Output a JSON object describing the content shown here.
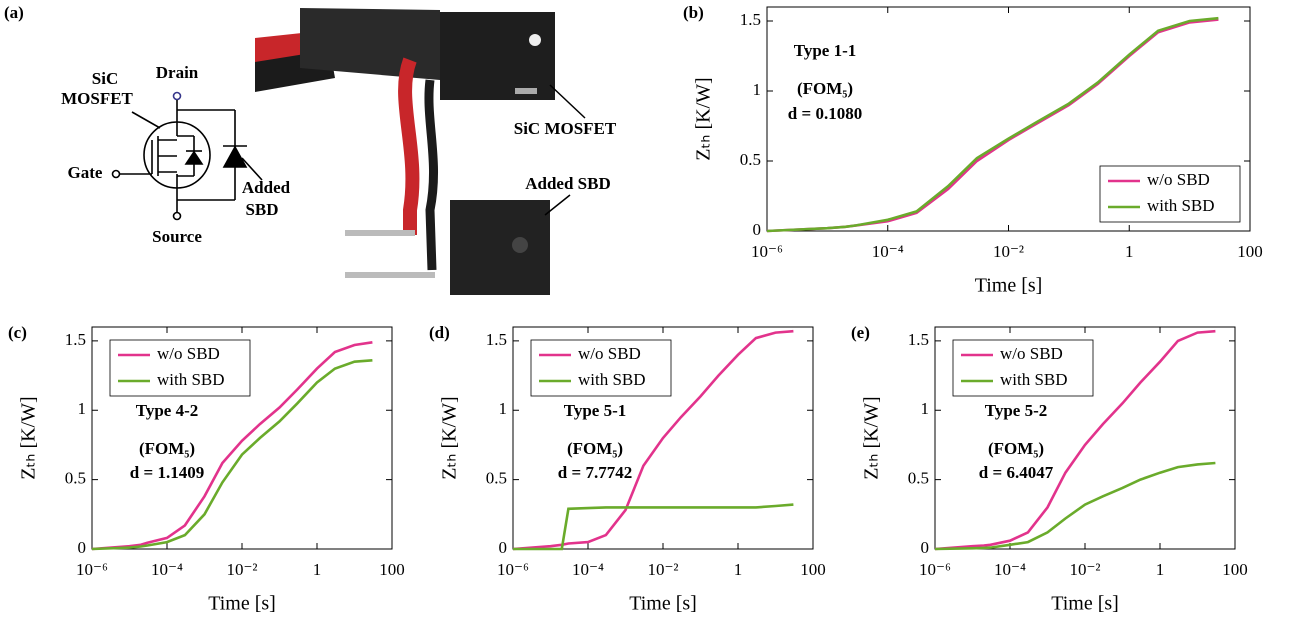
{
  "figure_a": {
    "panel_label": "(a)",
    "mosfet_label": [
      "SiC",
      "MOSFET"
    ],
    "drain": "Drain",
    "gate": "Gate",
    "source": "Source",
    "sbd_label": [
      "Added",
      "SBD"
    ],
    "photo_mosfet": "SiC MOSFET",
    "photo_sbd": "Added SBD"
  },
  "chart_data": [
    {
      "type": "line",
      "panel_label": "(b)",
      "xlabel": "Time [s]",
      "ylabel": "Zₜₕ [K/W]",
      "xscale": "log",
      "annotations": [
        "Type 1-1",
        "(FOM₅)",
        "d = 0.1080"
      ],
      "legend": "lower right",
      "x": [
        1e-06,
        1e-05,
        2e-05,
        3e-05,
        0.0001,
        0.0003,
        0.001,
        0.003,
        0.01,
        0.03,
        0.1,
        0.3,
        1,
        3,
        10,
        30
      ],
      "series": [
        {
          "name": "w/o SBD",
          "color": "#e2338c",
          "values": [
            0,
            0.02,
            0.03,
            0.04,
            0.07,
            0.13,
            0.3,
            0.5,
            0.65,
            0.77,
            0.9,
            1.05,
            1.25,
            1.42,
            1.49,
            1.51
          ]
        },
        {
          "name": "with SBD",
          "color": "#6aab2b",
          "values": [
            0,
            0.02,
            0.03,
            0.04,
            0.08,
            0.14,
            0.32,
            0.52,
            0.66,
            0.78,
            0.91,
            1.06,
            1.26,
            1.43,
            1.5,
            1.52
          ]
        }
      ],
      "xlim": [
        1e-06,
        100
      ],
      "xticks": [
        {
          "value": 1e-06,
          "label": "10⁻⁶"
        },
        {
          "value": 0.0001,
          "label": "10⁻⁴"
        },
        {
          "value": 0.01,
          "label": "10⁻²"
        },
        1,
        100
      ],
      "ylim": [
        0,
        1.6
      ],
      "yticks": [
        0,
        0.5,
        1,
        1.5
      ]
    },
    {
      "type": "line",
      "panel_label": "(c)",
      "xlabel": "Time [s]",
      "ylabel": "Zₜₕ [K/W]",
      "xscale": "log",
      "annotations": [
        "Type 4-2",
        "(FOM₅)",
        "d = 1.1409"
      ],
      "legend": "upper left",
      "x": [
        1e-06,
        1e-05,
        2e-05,
        3e-05,
        0.0001,
        0.0003,
        0.001,
        0.003,
        0.01,
        0.03,
        0.1,
        0.3,
        1,
        3,
        10,
        30
      ],
      "series": [
        {
          "name": "w/o SBD",
          "color": "#e2338c",
          "values": [
            0,
            0.02,
            0.03,
            0.045,
            0.08,
            0.17,
            0.38,
            0.62,
            0.78,
            0.9,
            1.02,
            1.15,
            1.3,
            1.42,
            1.47,
            1.49
          ]
        },
        {
          "name": "with SBD",
          "color": "#6aab2b",
          "values": [
            0,
            0.01,
            0.018,
            0.025,
            0.05,
            0.1,
            0.25,
            0.48,
            0.68,
            0.8,
            0.92,
            1.05,
            1.2,
            1.3,
            1.35,
            1.36
          ]
        }
      ],
      "xlim": [
        1e-06,
        100
      ],
      "xticks": [
        {
          "value": 1e-06,
          "label": "10⁻⁶"
        },
        {
          "value": 0.0001,
          "label": "10⁻⁴"
        },
        {
          "value": 0.01,
          "label": "10⁻²"
        },
        1,
        100
      ],
      "ylim": [
        0,
        1.6
      ],
      "yticks": [
        0,
        0.5,
        1,
        1.5
      ]
    },
    {
      "type": "line",
      "panel_label": "(d)",
      "xlabel": "Time [s]",
      "ylabel": "Zₜₕ [K/W]",
      "xscale": "log",
      "annotations": [
        "Type 5-1",
        "(FOM₅)",
        "d = 7.7742"
      ],
      "legend": "upper left",
      "x": [
        1e-06,
        1e-05,
        2e-05,
        3e-05,
        0.0001,
        0.0003,
        0.001,
        0.003,
        0.01,
        0.03,
        0.1,
        0.3,
        1,
        3,
        10,
        30
      ],
      "series": [
        {
          "name": "w/o SBD",
          "color": "#e2338c",
          "values": [
            0,
            0.02,
            0.03,
            0.04,
            0.05,
            0.1,
            0.28,
            0.6,
            0.8,
            0.95,
            1.1,
            1.25,
            1.4,
            1.52,
            1.56,
            1.57
          ]
        },
        {
          "name": "with SBD",
          "color": "#6aab2b",
          "values": [
            0,
            0,
            0,
            0.29,
            0.295,
            0.3,
            0.3,
            0.3,
            0.3,
            0.3,
            0.3,
            0.3,
            0.3,
            0.3,
            0.31,
            0.32
          ]
        }
      ],
      "xlim": [
        1e-06,
        100
      ],
      "xticks": [
        {
          "value": 1e-06,
          "label": "10⁻⁶"
        },
        {
          "value": 0.0001,
          "label": "10⁻⁴"
        },
        {
          "value": 0.01,
          "label": "10⁻²"
        },
        1,
        100
      ],
      "ylim": [
        0,
        1.6
      ],
      "yticks": [
        0,
        0.5,
        1,
        1.5
      ]
    },
    {
      "type": "line",
      "panel_label": "(e)",
      "xlabel": "Time [s]",
      "ylabel": "Zₜₕ [K/W]",
      "xscale": "log",
      "annotations": [
        "Type 5-2",
        "(FOM₅)",
        "d = 6.4047"
      ],
      "legend": "upper left",
      "x": [
        1e-06,
        1e-05,
        2e-05,
        3e-05,
        0.0001,
        0.0003,
        0.001,
        0.003,
        0.01,
        0.03,
        0.1,
        0.3,
        1,
        3,
        10,
        30
      ],
      "series": [
        {
          "name": "w/o SBD",
          "color": "#e2338c",
          "values": [
            0,
            0.02,
            0.025,
            0.03,
            0.06,
            0.12,
            0.3,
            0.55,
            0.75,
            0.9,
            1.05,
            1.2,
            1.35,
            1.5,
            1.56,
            1.57
          ]
        },
        {
          "name": "with SBD",
          "color": "#6aab2b",
          "values": [
            0,
            0.005,
            0.008,
            0.01,
            0.03,
            0.05,
            0.12,
            0.22,
            0.32,
            0.38,
            0.44,
            0.5,
            0.55,
            0.59,
            0.61,
            0.62
          ]
        }
      ],
      "xlim": [
        1e-06,
        100
      ],
      "xticks": [
        {
          "value": 1e-06,
          "label": "10⁻⁶"
        },
        {
          "value": 0.0001,
          "label": "10⁻⁴"
        },
        {
          "value": 0.01,
          "label": "10⁻²"
        },
        1,
        100
      ],
      "ylim": [
        0,
        1.6
      ],
      "yticks": [
        0,
        0.5,
        1,
        1.5
      ]
    }
  ]
}
